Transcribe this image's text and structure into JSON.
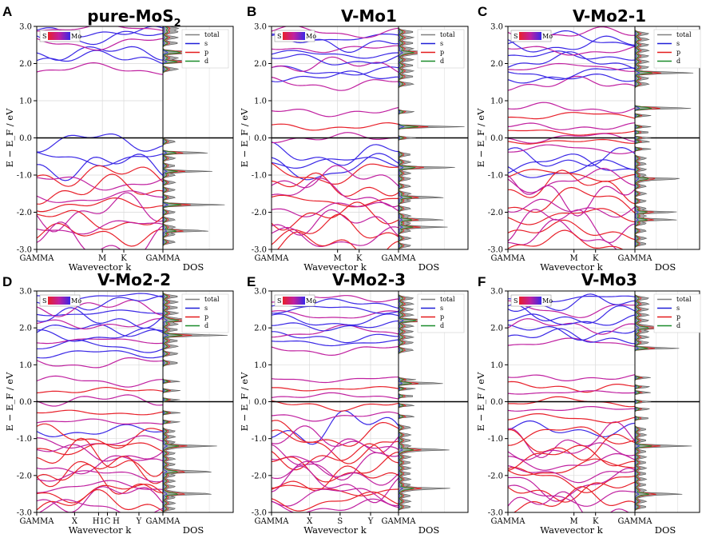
{
  "chart_data": [
    {
      "id": "A",
      "panel_label": "A",
      "title": "pure-MoS",
      "title_sub": "2",
      "type": "line",
      "ylabel": "E − E_F / eV",
      "xlabel": "Wavevector k",
      "dos_label": "DOS",
      "ylim": [
        -3.0,
        3.0
      ],
      "yticks": [
        "3.0",
        "2.0",
        "1.0",
        "0.0",
        "-1.0",
        "-2.0",
        "-3.0"
      ],
      "kpath": [
        "GAMMA",
        "M",
        "K",
        "GAMMA"
      ],
      "conduction_bands_eV": [
        1.85,
        2.15,
        2.3,
        2.55,
        2.7,
        2.85,
        2.95
      ],
      "valence_bands_eV": [
        -0.1,
        -0.55,
        -0.75,
        -1.0,
        -1.2,
        -1.4,
        -1.6,
        -1.8,
        -2.0,
        -2.2,
        -2.4,
        -2.6,
        -2.8
      ],
      "mid_gap_bands_eV": [],
      "dos_peaks_eV": [
        2.05,
        2.3,
        -0.4,
        -0.9,
        -1.8,
        -2.5
      ],
      "colorbar_labels": [
        "S",
        "Mo"
      ],
      "legend": [
        "total",
        "s",
        "p",
        "d"
      ]
    },
    {
      "id": "B",
      "panel_label": "B",
      "title": "V-Mo1",
      "title_sub": "",
      "type": "line",
      "ylabel": "E − E_F / eV",
      "xlabel": "Wavevector k",
      "dos_label": "DOS",
      "ylim": [
        -3.0,
        3.0
      ],
      "yticks": [
        "3.0",
        "2.0",
        "1.0",
        "0.0",
        "-1.0",
        "-2.0",
        "-3.0"
      ],
      "kpath": [
        "GAMMA",
        "M",
        "K",
        "GAMMA"
      ],
      "conduction_bands_eV": [
        1.45,
        1.65,
        1.8,
        1.95,
        2.1,
        2.25,
        2.4,
        2.55,
        2.7,
        2.85
      ],
      "valence_bands_eV": [
        -0.45,
        -0.65,
        -0.8,
        -0.95,
        -1.1,
        -1.3,
        -1.5,
        -1.7,
        -1.9,
        -2.1,
        -2.3,
        -2.5,
        -2.7,
        -2.9
      ],
      "mid_gap_bands_eV": [
        0.7,
        0.3,
        0.0
      ],
      "dos_peaks_eV": [
        2.3,
        0.3,
        -0.8,
        -1.6,
        -2.2,
        -2.4
      ],
      "colorbar_labels": [
        "S",
        "Mo"
      ],
      "legend": [
        "total",
        "s",
        "p",
        "d"
      ]
    },
    {
      "id": "C",
      "panel_label": "C",
      "title": "V-Mo2-1",
      "title_sub": "",
      "type": "line",
      "ylabel": "E − E_F / eV",
      "xlabel": "Wavevector k",
      "dos_label": "DOS",
      "ylim": [
        -3.0,
        3.0
      ],
      "yticks": [
        "3.0",
        "2.0",
        "1.0",
        "0.0",
        "-1.0",
        "-2.0",
        "-3.0"
      ],
      "kpath": [
        "GAMMA",
        "M",
        "K",
        "GAMMA"
      ],
      "conduction_bands_eV": [
        1.45,
        1.6,
        1.75,
        1.9,
        2.05,
        2.2,
        2.35,
        2.5,
        2.65,
        2.8
      ],
      "valence_bands_eV": [
        -0.55,
        -0.7,
        -0.85,
        -1.0,
        -1.15,
        -1.3,
        -1.5,
        -1.7,
        -1.9,
        -2.1,
        -2.3,
        -2.5,
        -2.7,
        -2.85
      ],
      "mid_gap_bands_eV": [
        0.8,
        0.6,
        0.3,
        0.15,
        0.0,
        -0.1,
        -0.3
      ],
      "dos_peaks_eV": [
        1.75,
        0.8,
        -1.1,
        -2.0,
        -2.2
      ],
      "colorbar_labels": [
        "S",
        "Mo"
      ],
      "legend": [
        "total",
        "s",
        "p",
        "d"
      ]
    },
    {
      "id": "D",
      "panel_label": "D",
      "title": "V-Mo2-2",
      "title_sub": "",
      "type": "line",
      "ylabel": "E − E_F / eV",
      "xlabel": "Wavevector k",
      "dos_label": "DOS",
      "ylim": [
        -3.0,
        3.0
      ],
      "yticks": [
        "3.0",
        "2.0",
        "1.0",
        "0.0",
        "-1.0",
        "-2.0",
        "-3.0"
      ],
      "kpath": [
        "GAMMA",
        "X",
        "H1",
        "C",
        "H",
        "Y",
        "GAMMA"
      ],
      "conduction_bands_eV": [
        1.05,
        1.3,
        1.5,
        1.65,
        1.8,
        1.95,
        2.1,
        2.25,
        2.4,
        2.55,
        2.7,
        2.85
      ],
      "valence_bands_eV": [
        -0.8,
        -0.95,
        -1.1,
        -1.25,
        -1.4,
        -1.55,
        -1.7,
        -1.85,
        -2.0,
        -2.15,
        -2.3,
        -2.45,
        -2.6,
        -2.75,
        -2.9
      ],
      "mid_gap_bands_eV": [
        0.55,
        0.3,
        0.05,
        -0.3,
        -0.55
      ],
      "dos_peaks_eV": [
        1.8,
        2.2,
        -1.2,
        -1.9,
        -2.5
      ],
      "colorbar_labels": [
        "S",
        "Mo"
      ],
      "legend": [
        "total",
        "s",
        "p",
        "d"
      ]
    },
    {
      "id": "E",
      "panel_label": "E",
      "title": "V-Mo2-3",
      "title_sub": "",
      "type": "line",
      "ylabel": "E − E_F / eV",
      "xlabel": "Wavevector k",
      "dos_label": "DOS",
      "ylim": [
        -3.0,
        3.0
      ],
      "yticks": [
        "3.0",
        "2.0",
        "1.0",
        "0.0",
        "-1.0",
        "-2.0",
        "-3.0"
      ],
      "kpath": [
        "GAMMA",
        "X",
        "S",
        "Y",
        "GAMMA"
      ],
      "conduction_bands_eV": [
        1.4,
        1.6,
        1.75,
        1.9,
        2.05,
        2.2,
        2.35,
        2.5,
        2.65,
        2.8
      ],
      "valence_bands_eV": [
        -0.7,
        -0.9,
        -1.05,
        -1.2,
        -1.35,
        -1.5,
        -1.65,
        -1.8,
        -1.95,
        -2.1,
        -2.25,
        -2.4,
        -2.55,
        -2.7,
        -2.85
      ],
      "mid_gap_bands_eV": [
        0.6,
        0.35,
        0.15,
        -0.1,
        -0.4
      ],
      "dos_peaks_eV": [
        2.2,
        0.5,
        -1.3,
        -2.35
      ],
      "colorbar_labels": [
        "S",
        "Mo"
      ],
      "legend": [
        "total",
        "s",
        "p",
        "d"
      ]
    },
    {
      "id": "F",
      "panel_label": "F",
      "title": "V-Mo3",
      "title_sub": "",
      "type": "line",
      "ylabel": "E − E_F / eV",
      "xlabel": "Wavevector k",
      "dos_label": "DOS",
      "ylim": [
        -3.0,
        3.0
      ],
      "yticks": [
        "3.0",
        "2.0",
        "1.0",
        "0.0",
        "-1.0",
        "-2.0",
        "-3.0"
      ],
      "kpath": [
        "GAMMA",
        "M",
        "K",
        "GAMMA"
      ],
      "conduction_bands_eV": [
        1.6,
        1.75,
        1.9,
        2.05,
        2.2,
        2.35,
        2.5,
        2.65,
        2.8
      ],
      "valence_bands_eV": [
        -0.75,
        -0.9,
        -1.05,
        -1.2,
        -1.35,
        -1.5,
        -1.65,
        -1.8,
        -1.95,
        -2.1,
        -2.25,
        -2.4,
        -2.55,
        -2.7,
        -2.85
      ],
      "mid_gap_bands_eV": [
        0.65,
        0.4,
        0.25,
        0.0,
        -0.2,
        -0.45
      ],
      "dos_peaks_eV": [
        1.45,
        2.0,
        -1.2,
        -2.5
      ],
      "colorbar_labels": [
        "S",
        "Mo"
      ],
      "legend": [
        "total",
        "s",
        "p",
        "d"
      ]
    }
  ],
  "legend_colors": {
    "total": "#808080",
    "s": "#1f1fd8",
    "p": "#e41a1c",
    "d": "#1a8c2a"
  },
  "band_colors": {
    "s_rich": "#e8202a",
    "mixed": "#c020a0",
    "mo_rich": "#3a28e6"
  }
}
